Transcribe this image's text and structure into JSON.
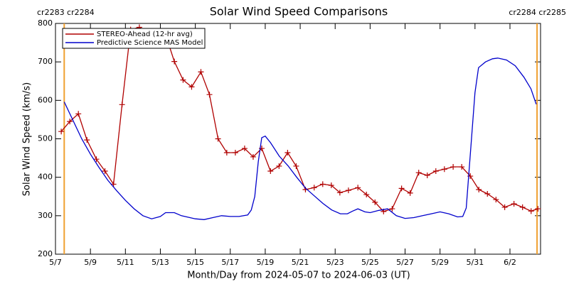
{
  "chart_data": {
    "type": "line",
    "title": "Solar Wind Speed Comparisons",
    "x_label": "Month/Day from 2024-05-07 to 2024-06-03 (UT)",
    "y_label": "Solar Wind Speed (km/s)",
    "xlim": [
      0,
      27.75
    ],
    "xticks": [
      {
        "value": 0,
        "label": "5/7"
      },
      {
        "value": 2,
        "label": "5/9"
      },
      {
        "value": 4,
        "label": "5/11"
      },
      {
        "value": 6,
        "label": "5/13"
      },
      {
        "value": 8,
        "label": "5/15"
      },
      {
        "value": 10,
        "label": "5/17"
      },
      {
        "value": 12,
        "label": "5/19"
      },
      {
        "value": 14,
        "label": "5/21"
      },
      {
        "value": 16,
        "label": "5/23"
      },
      {
        "value": 18,
        "label": "5/25"
      },
      {
        "value": 20,
        "label": "5/27"
      },
      {
        "value": 22,
        "label": "5/29"
      },
      {
        "value": 24,
        "label": "5/31"
      },
      {
        "value": 26,
        "label": "6/2"
      }
    ],
    "ylim": [
      200,
      800
    ],
    "yticks": [
      200,
      300,
      400,
      500,
      600,
      700,
      800
    ],
    "legend": "upper left",
    "markers": [
      {
        "x": 0.5,
        "label": "cr2283 cr2284",
        "color": "#f0a030"
      },
      {
        "x": 27.55,
        "label": "cr2284 cr2285",
        "color": "#f0a030"
      }
    ],
    "series": [
      {
        "name": "STEREO-Ahead (12-hr avg)",
        "color": "#b00000",
        "marker": "+",
        "x": [
          0.33,
          0.82,
          1.31,
          1.8,
          2.34,
          2.83,
          3.32,
          3.81,
          4.3,
          4.8,
          5.3,
          5.8,
          6.3,
          6.8,
          7.3,
          7.79,
          8.32,
          8.81,
          9.3,
          9.8,
          10.29,
          10.82,
          11.31,
          11.8,
          12.3,
          12.79,
          13.28,
          13.77,
          14.3,
          14.8,
          15.29,
          15.78,
          16.27,
          16.76,
          17.3,
          17.79,
          18.28,
          18.77,
          19.26,
          19.8,
          20.29,
          20.78,
          21.27,
          21.76,
          22.25,
          22.75,
          23.24,
          23.73,
          24.22,
          24.71,
          25.2,
          25.7,
          26.23,
          26.72,
          27.21,
          27.6
        ],
        "values": [
          519,
          545,
          565,
          497,
          447,
          416,
          382,
          589,
          784,
          790,
          775,
          770,
          771,
          701,
          653,
          635,
          674,
          615,
          500,
          464,
          464,
          475,
          453,
          475,
          416,
          429,
          464,
          429,
          368,
          373,
          382,
          379,
          360,
          366,
          373,
          355,
          335,
          311,
          318,
          371,
          359,
          412,
          405,
          416,
          421,
          427,
          427,
          403,
          368,
          357,
          342,
          322,
          331,
          322,
          312,
          318
        ]
      },
      {
        "name": "Predictive Science MAS Model",
        "color": "#0000cc",
        "marker": "none",
        "x": [
          0.5,
          1,
          1.5,
          2,
          2.5,
          3,
          3.5,
          4,
          4.5,
          5,
          5.5,
          6,
          6.3,
          6.8,
          7.2,
          8,
          8.5,
          9,
          9.5,
          10,
          10.5,
          11,
          11.2,
          11.4,
          11.6,
          11.8,
          12,
          12.3,
          12.8,
          13.3,
          13.8,
          14.3,
          14.8,
          15.3,
          15.8,
          16.3,
          16.7,
          17,
          17.3,
          17.7,
          18,
          18.5,
          19,
          19.5,
          20,
          20.5,
          21,
          21.5,
          22,
          22.5,
          23,
          23.3,
          23.5,
          23.8,
          24,
          24.2,
          24.6,
          25,
          25.3,
          25.8,
          26.3,
          26.8,
          27.2,
          27.5
        ],
        "values": [
          596,
          548,
          500,
          460,
          425,
          392,
          365,
          340,
          318,
          300,
          292,
          298,
          308,
          308,
          300,
          292,
          290,
          295,
          300,
          298,
          298,
          302,
          315,
          350,
          440,
          503,
          507,
          490,
          455,
          430,
          400,
          372,
          352,
          332,
          315,
          305,
          305,
          312,
          318,
          310,
          308,
          314,
          318,
          300,
          293,
          295,
          300,
          305,
          310,
          305,
          297,
          298,
          320,
          500,
          620,
          685,
          700,
          708,
          710,
          705,
          690,
          660,
          630,
          590
        ]
      }
    ]
  }
}
